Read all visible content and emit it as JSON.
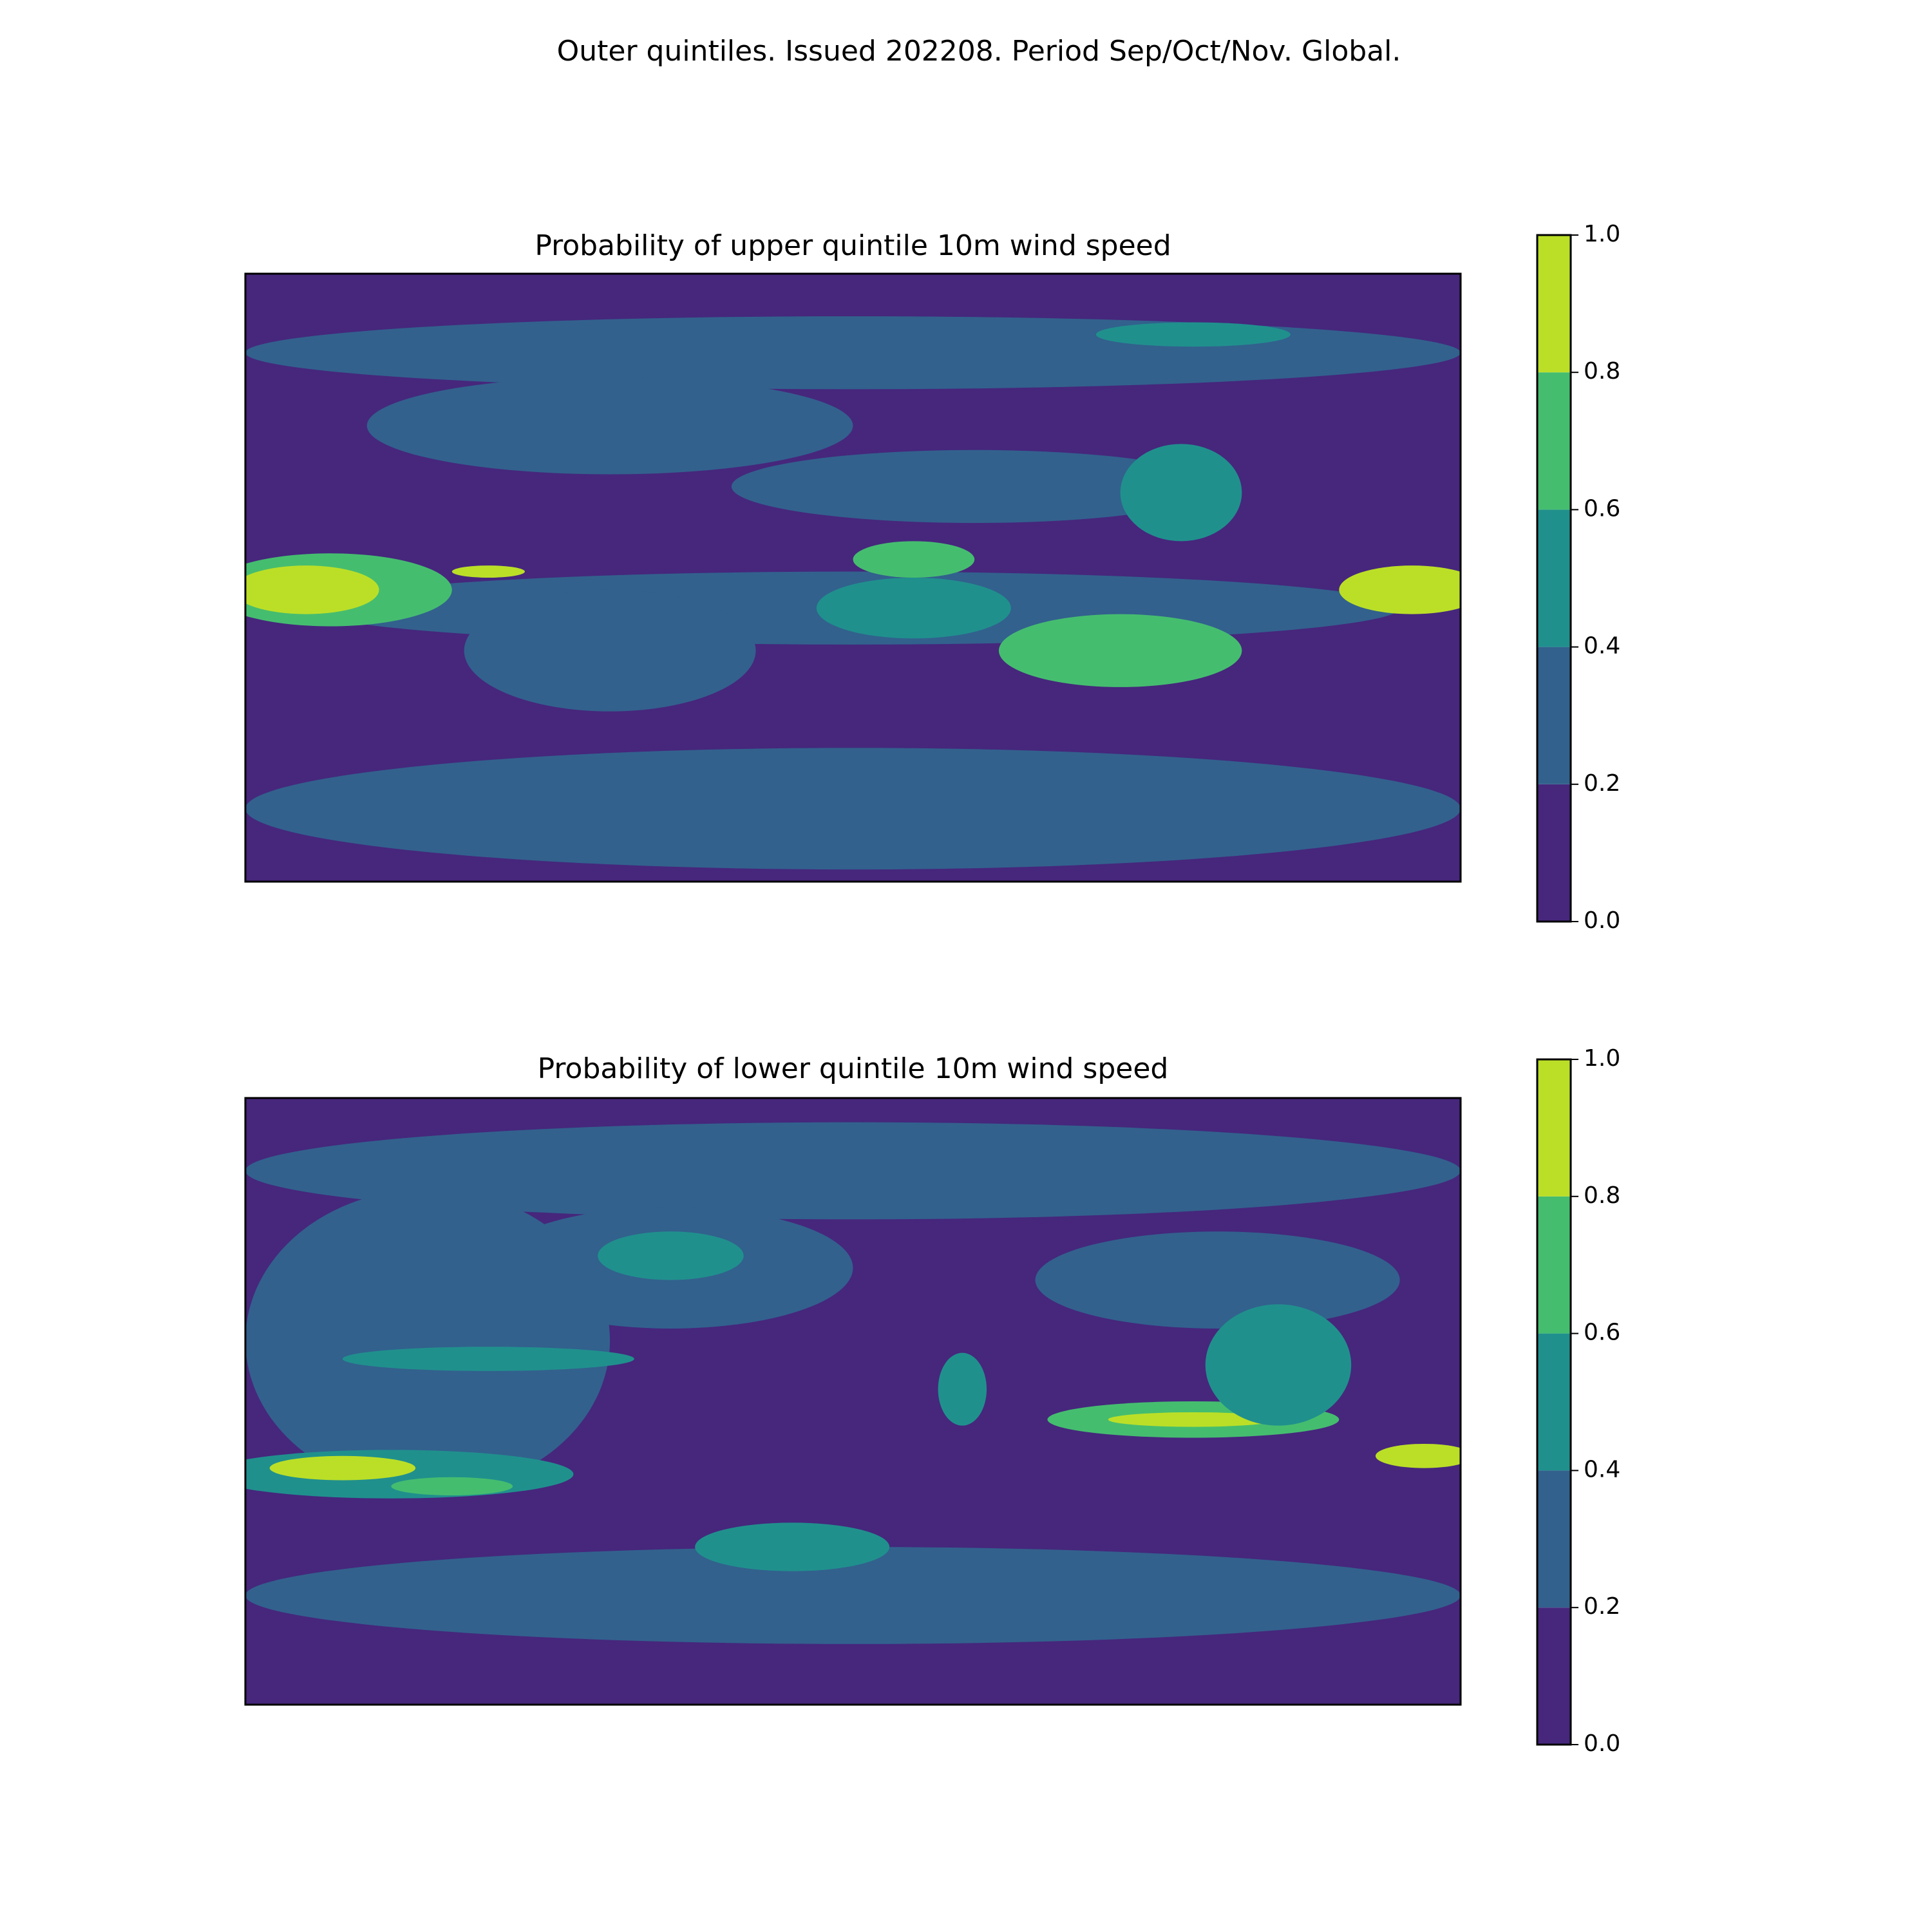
{
  "title": "Outer quintiles. Issued 202208. Period Sep/Oct/Nov. Global.",
  "chart_data": [
    {
      "type": "contourf",
      "title": "Probability of upper quintile 10m wind speed",
      "colors": [
        "#46277c",
        "#32618d",
        "#20908d",
        "#45bd6f",
        "#bbdf27"
      ],
      "clim": [
        0,
        1
      ],
      "cticks": [
        {
          "value": 0,
          "label": "0.0"
        },
        {
          "value": 0.2,
          "label": "0.2"
        },
        {
          "value": 0.4,
          "label": "0.4"
        },
        {
          "value": 0.6,
          "label": "0.6"
        },
        {
          "value": 0.8,
          "label": "0.8"
        },
        {
          "value": 1,
          "label": "1.0"
        }
      ]
    },
    {
      "type": "contourf",
      "title": "Probability of lower quintile 10m wind speed",
      "colors": [
        "#46277c",
        "#32618d",
        "#20908d",
        "#45bd6f",
        "#bbdf27"
      ],
      "clim": [
        0,
        1
      ],
      "cticks": [
        {
          "value": 0,
          "label": "0.0"
        },
        {
          "value": 0.2,
          "label": "0.2"
        },
        {
          "value": 0.4,
          "label": "0.4"
        },
        {
          "value": 0.6,
          "label": "0.6"
        },
        {
          "value": 0.8,
          "label": "0.8"
        },
        {
          "value": 1,
          "label": "1.0"
        }
      ]
    }
  ]
}
